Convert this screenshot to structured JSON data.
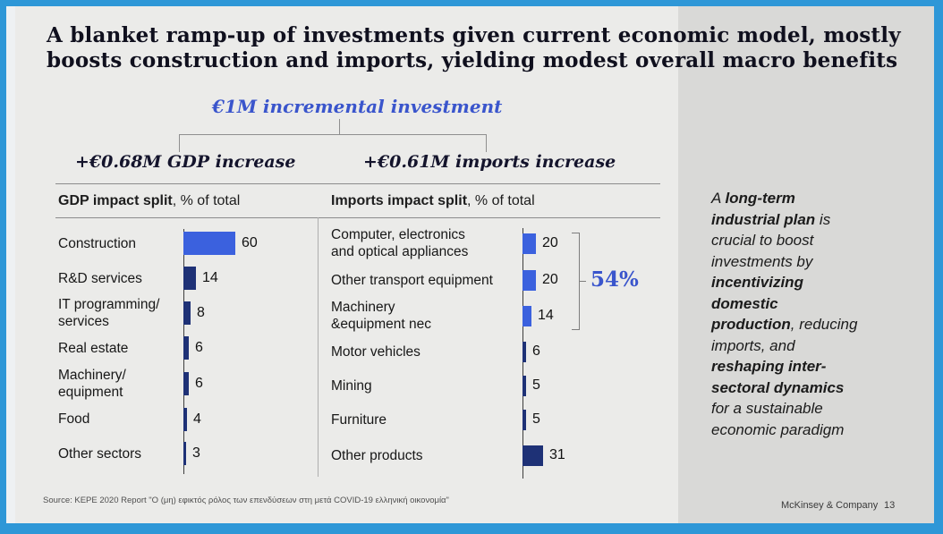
{
  "colors": {
    "frame": "#2e97d7",
    "slide_bg": "#ebebe9",
    "panel_bg": "#d9d9d7",
    "bar_highlight": "#3b61de",
    "bar_default": "#1e3176",
    "accent_text": "#3a55cc"
  },
  "slide": {
    "title": "A blanket ramp-up of investments given current economic model, mostly boosts construction and imports, yielding modest overall macro benefits",
    "investment_label": "€1M incremental investment",
    "gdp_increase_label": "+€0.68M GDP increase",
    "imports_increase_label": "+€0.61M imports increase"
  },
  "charts": {
    "gdp": {
      "title_bold": "GDP impact split",
      "title_rest": ", % of total"
    },
    "imports": {
      "title_bold": "Imports impact split",
      "title_rest": ", % of total",
      "bracket_label": "54%"
    }
  },
  "chart_data": [
    {
      "type": "bar",
      "orientation": "horizontal",
      "title": "GDP impact split, % of total",
      "categories": [
        "Construction",
        "R&D services",
        "IT programming/ services",
        "Real estate",
        "Machinery/ equipment",
        "Food",
        "Other sectors"
      ],
      "values": [
        60,
        14,
        8,
        6,
        6,
        4,
        3
      ],
      "value_unit": "% of total",
      "xlim": [
        0,
        60
      ],
      "grid": false,
      "rows": [
        {
          "label_lines": [
            "Construction"
          ],
          "value": 60,
          "emphasis": true
        },
        {
          "label_lines": [
            "R&D services"
          ],
          "value": 14,
          "emphasis": false
        },
        {
          "label_lines": [
            "IT programming/",
            "services"
          ],
          "value": 8,
          "emphasis": false
        },
        {
          "label_lines": [
            "Real estate"
          ],
          "value": 6,
          "emphasis": false
        },
        {
          "label_lines": [
            "Machinery/",
            "equipment"
          ],
          "value": 6,
          "emphasis": false
        },
        {
          "label_lines": [
            "Food"
          ],
          "value": 4,
          "emphasis": false
        },
        {
          "label_lines": [
            "Other sectors"
          ],
          "value": 3,
          "emphasis": false
        }
      ]
    },
    {
      "type": "bar",
      "orientation": "horizontal",
      "title": "Imports impact split, % of total",
      "categories": [
        "Computer, electronics and optical appliances",
        "Other transport equipment",
        "Machinery &equipment nec",
        "Motor vehicles",
        "Mining",
        "Furniture",
        "Other products"
      ],
      "values": [
        20,
        20,
        14,
        6,
        5,
        5,
        31
      ],
      "value_unit": "% of total",
      "xlim": [
        0,
        31
      ],
      "grid": false,
      "annotation": {
        "label": "54%",
        "covers": [
          "Computer, electronics and optical appliances",
          "Other transport equipment",
          "Machinery &equipment nec"
        ]
      },
      "rows": [
        {
          "label_lines": [
            "Computer, electronics",
            "and optical appliances"
          ],
          "value": 20,
          "emphasis": true
        },
        {
          "label_lines": [
            "Other transport equipment"
          ],
          "value": 20,
          "emphasis": true
        },
        {
          "label_lines": [
            "Machinery",
            "&equipment nec"
          ],
          "value": 14,
          "emphasis": true
        },
        {
          "label_lines": [
            "Motor vehicles"
          ],
          "value": 6,
          "emphasis": false
        },
        {
          "label_lines": [
            "Mining"
          ],
          "value": 5,
          "emphasis": false
        },
        {
          "label_lines": [
            "Furniture"
          ],
          "value": 5,
          "emphasis": false
        },
        {
          "label_lines": [
            "Other products"
          ],
          "value": 31,
          "emphasis": false
        }
      ]
    }
  ],
  "sidebar": {
    "lines": [
      [
        {
          "t": "A ",
          "b": false
        },
        {
          "t": "long-term",
          "b": true
        }
      ],
      [
        {
          "t": "industrial plan",
          "b": true
        },
        {
          "t": " is",
          "b": false
        }
      ],
      [
        {
          "t": "crucial to boost",
          "b": false
        }
      ],
      [
        {
          "t": "investments by",
          "b": false
        }
      ],
      [
        {
          "t": "incentivizing",
          "b": true
        }
      ],
      [
        {
          "t": "domestic",
          "b": true
        }
      ],
      [
        {
          "t": "production",
          "b": true
        },
        {
          "t": ", reducing",
          "b": false
        }
      ],
      [
        {
          "t": "imports, and",
          "b": false
        }
      ],
      [
        {
          "t": "reshaping inter-",
          "b": true
        }
      ],
      [
        {
          "t": "sectoral dynamics",
          "b": true
        }
      ],
      [
        {
          "t": "for a sustainable",
          "b": false
        }
      ],
      [
        {
          "t": "economic paradigm",
          "b": false
        }
      ]
    ]
  },
  "footer": {
    "source": "Source: KEPE 2020 Report \"Ο (μη) εφικτός ρόλος των επενδύσεων στη μετά COVID-19 ελληνική οικονομία\"",
    "brand": "McKinsey & Company",
    "page_number": "13"
  }
}
